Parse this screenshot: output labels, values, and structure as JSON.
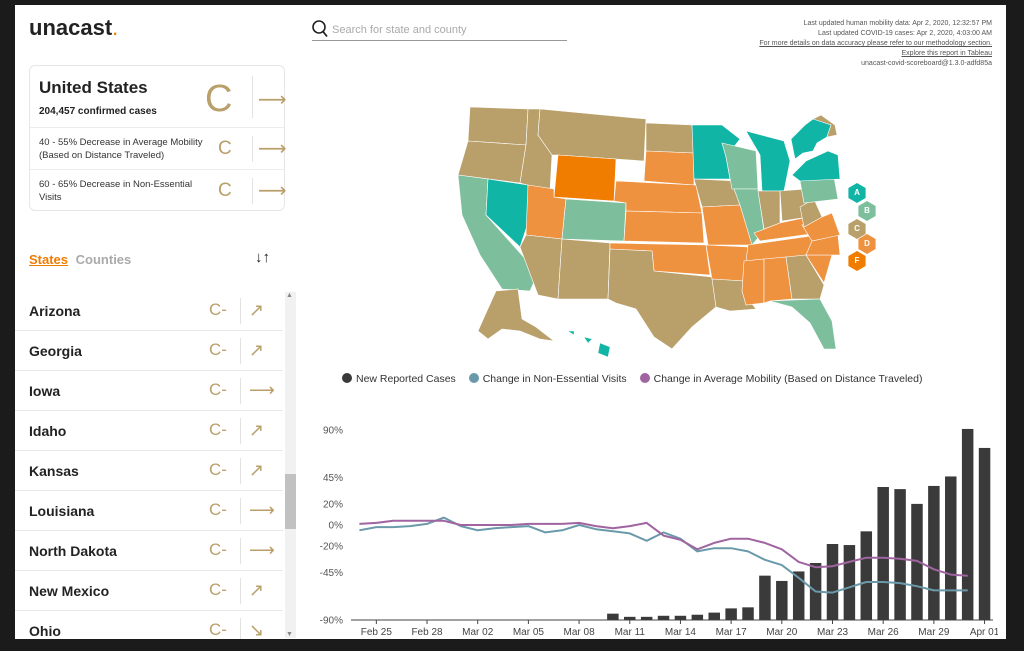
{
  "app": {
    "logo_text": "unacast",
    "logo_dot": "."
  },
  "summary": {
    "title": "United States",
    "cases": "204,457 confirmed cases",
    "grade": "C",
    "rows": [
      {
        "label": "40 - 55% Decrease in Average Mobility (Based on Distance Traveled)",
        "grade": "C"
      },
      {
        "label": "60 - 65% Decrease in Non-Essential Visits",
        "grade": "C"
      }
    ]
  },
  "tabs": {
    "states": "States",
    "counties": "Counties"
  },
  "states_list": [
    {
      "name": "Arizona",
      "grade": "C-",
      "trend": "up-right"
    },
    {
      "name": "Georgia",
      "grade": "C-",
      "trend": "up-right"
    },
    {
      "name": "Iowa",
      "grade": "C-",
      "trend": "right"
    },
    {
      "name": "Idaho",
      "grade": "C-",
      "trend": "up-right"
    },
    {
      "name": "Kansas",
      "grade": "C-",
      "trend": "up-right"
    },
    {
      "name": "Louisiana",
      "grade": "C-",
      "trend": "right"
    },
    {
      "name": "North Dakota",
      "grade": "C-",
      "trend": "right"
    },
    {
      "name": "New Mexico",
      "grade": "C-",
      "trend": "up-right"
    },
    {
      "name": "Ohio",
      "grade": "C-",
      "trend": "down-right"
    }
  ],
  "search": {
    "placeholder": "Search for state and county"
  },
  "meta": {
    "line1": "Last updated human mobility data: Apr 2, 2020, 12:32:57 PM",
    "line2": "Last updated COVID-19 cases: Apr 2, 2020, 4:03:00 AM",
    "link1": "For more details on data accuracy please refer to our methodology section.",
    "link2": "Explore this report in Tableau",
    "version": "unacast-covid-scoreboard@1.3.0-adfd85a"
  },
  "grade_scale": [
    {
      "label": "A",
      "color": "#11b5a6"
    },
    {
      "label": "B",
      "color": "#7dbf9c"
    },
    {
      "label": "C",
      "color": "#b9a06a"
    },
    {
      "label": "D",
      "color": "#ee9240"
    },
    {
      "label": "F",
      "color": "#f07c00"
    }
  ],
  "chart_data": {
    "type": "bar",
    "legend": [
      {
        "name": "New Reported Cases",
        "color": "#3a3a3a"
      },
      {
        "name": "Change in Non-Essential Visits",
        "color": "#6a9aaa"
      },
      {
        "name": "Change in Average Mobility (Based on Distance Traveled)",
        "color": "#a064a0"
      }
    ],
    "x_tick_labels": [
      "Feb 25",
      "Feb 28",
      "Mar 02",
      "Mar 05",
      "Mar 08",
      "Mar 11",
      "Mar 14",
      "Mar 17",
      "Mar 20",
      "Mar 23",
      "Mar 26",
      "Mar 29",
      "Apr 01"
    ],
    "y_tick_labels": [
      "90%",
      "45%",
      "20%",
      "0%",
      "-20%",
      "-45%",
      "-90%"
    ],
    "y_ticks": [
      90,
      45,
      20,
      0,
      -20,
      -45,
      -90
    ],
    "ylim": [
      -90,
      90
    ],
    "x_range": [
      "Feb 24",
      "Apr 01"
    ],
    "series": [
      {
        "name": "New Reported Cases",
        "kind": "bar",
        "start": "Mar 10",
        "values": [
          -84,
          -87,
          -87,
          -86,
          -86,
          -85,
          -83,
          -79,
          -78,
          -48,
          -53,
          -44,
          -36,
          -18,
          -19,
          -6,
          36,
          34,
          20,
          37,
          46,
          91,
          73
        ]
      },
      {
        "name": "Change in Non-Essential Visits",
        "kind": "line",
        "start": "Feb 24",
        "values": [
          -5,
          -2,
          -2,
          -1,
          1,
          7,
          -1,
          -5,
          -3,
          -2,
          -1,
          -7,
          -5,
          0,
          -4,
          -6,
          -8,
          -15,
          -7,
          -13,
          -25,
          -22,
          -22,
          -25,
          -33,
          -38,
          -50,
          -63,
          -64,
          -59,
          -54,
          -54,
          -55,
          -58,
          -62,
          -62,
          -62
        ]
      },
      {
        "name": "Change in Average Mobility (Based on Distance Traveled)",
        "kind": "line",
        "start": "Feb 24",
        "values": [
          1,
          2,
          4,
          4,
          4,
          4,
          0,
          0,
          0,
          0,
          1,
          1,
          1,
          2,
          -1,
          -3,
          -1,
          2,
          -10,
          -14,
          -23,
          -17,
          -13,
          -13,
          -17,
          -23,
          -35,
          -40,
          -39,
          -35,
          -31,
          -31,
          -32,
          -34,
          -42,
          -47,
          -48
        ]
      }
    ]
  }
}
